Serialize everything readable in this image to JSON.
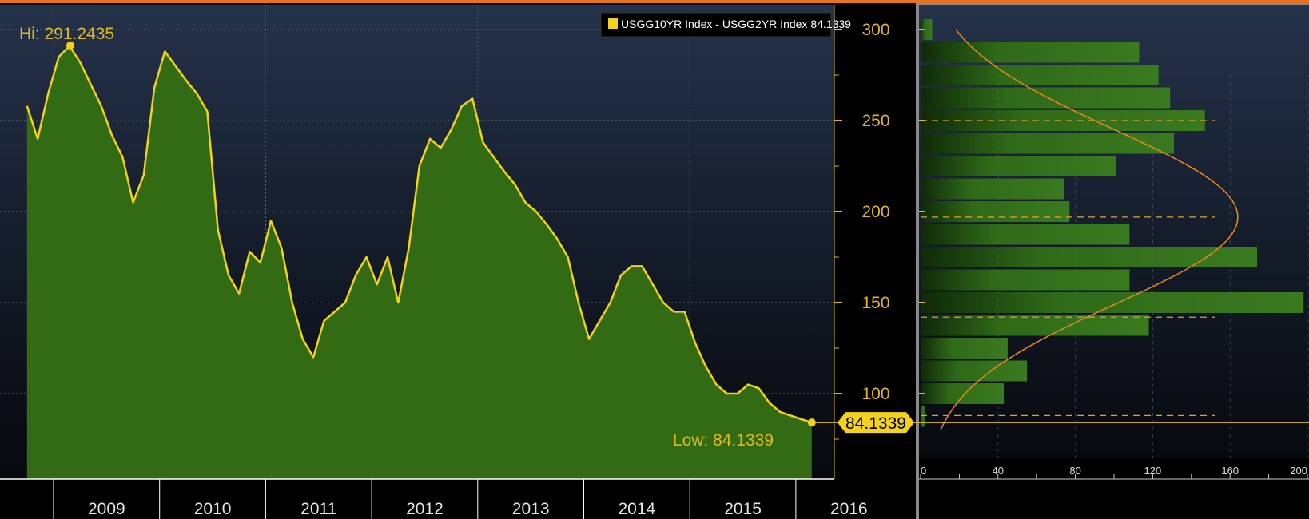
{
  "chart_data": [
    {
      "type": "area",
      "series_label": "USGG10YR Index - USGG2YR Index 84.1339",
      "last_value_label": "84.1339",
      "hi_label": "Hi: 291.2435",
      "low_label": "Low: 84.1339",
      "hi": 291.2435,
      "low": 84.1339,
      "last": 84.1339,
      "ylim": [
        60,
        310
      ],
      "yticks": [
        100,
        150,
        200,
        250,
        300
      ],
      "ytick_labels": [
        "100",
        "150",
        "200",
        "250",
        "300"
      ],
      "year_labels": [
        "2009",
        "2010",
        "2011",
        "2012",
        "2013",
        "2014",
        "2015",
        "2016"
      ],
      "grid": true,
      "legend": "top-right",
      "colors": {
        "line": "#f2d21a",
        "fill": "#336b14",
        "accent": "#e0b822",
        "bg_top": "#24324a",
        "bg_bottom": "#06080d"
      },
      "x": [
        2009.0,
        2009.1,
        2009.2,
        2009.3,
        2009.4,
        2009.5,
        2009.6,
        2009.7,
        2009.8,
        2009.9,
        2010.0,
        2010.1,
        2010.2,
        2010.3,
        2010.4,
        2010.5,
        2010.6,
        2010.7,
        2010.8,
        2010.9,
        2011.0,
        2011.1,
        2011.2,
        2011.3,
        2011.4,
        2011.5,
        2011.6,
        2011.7,
        2011.8,
        2011.9,
        2012.0,
        2012.1,
        2012.2,
        2012.3,
        2012.4,
        2012.5,
        2012.6,
        2012.7,
        2012.8,
        2012.9,
        2013.0,
        2013.1,
        2013.2,
        2013.3,
        2013.4,
        2013.5,
        2013.6,
        2013.7,
        2013.8,
        2013.9,
        2014.0,
        2014.1,
        2014.2,
        2014.3,
        2014.4,
        2014.5,
        2014.6,
        2014.7,
        2014.8,
        2014.9,
        2015.0,
        2015.1,
        2015.2,
        2015.3,
        2015.4,
        2015.5,
        2015.6,
        2015.7,
        2015.8,
        2015.9,
        2016.0,
        2016.1,
        2016.2,
        2016.3,
        2016.4
      ],
      "values": [
        258,
        240,
        265,
        285,
        291,
        282,
        270,
        258,
        242,
        230,
        205,
        220,
        268,
        288,
        280,
        272,
        265,
        255,
        190,
        165,
        155,
        178,
        172,
        195,
        180,
        150,
        130,
        120,
        140,
        145,
        150,
        165,
        175,
        160,
        175,
        150,
        180,
        225,
        240,
        235,
        245,
        258,
        262,
        238,
        230,
        222,
        215,
        205,
        200,
        193,
        185,
        175,
        150,
        130,
        140,
        150,
        165,
        170,
        170,
        160,
        150,
        145,
        145,
        128,
        115,
        105,
        100,
        100,
        105,
        103,
        95,
        90,
        88,
        86,
        84.1339
      ]
    },
    {
      "type": "bar",
      "orientation": "horizontal",
      "xticks": [
        0,
        40,
        80,
        120,
        160,
        200
      ],
      "xtick_labels": [
        "0",
        "40",
        "80",
        "120",
        "160",
        "200"
      ],
      "xlim": [
        0,
        200
      ],
      "bin_centers": [
        87.5,
        100,
        112.5,
        125,
        137.5,
        150,
        162.5,
        175,
        187.5,
        200,
        212.5,
        225,
        237.5,
        250,
        262.5,
        275,
        287.5,
        300
      ],
      "values": [
        2,
        43,
        55,
        45,
        118,
        198,
        108,
        174,
        108,
        77,
        74,
        101,
        131,
        147,
        129,
        123,
        113,
        6
      ],
      "curve": "normal-fit",
      "curve_peak_value": 162,
      "curve_mean": 197,
      "dashed_levels": [
        88,
        142,
        197,
        250
      ],
      "colors": {
        "bar": "#2f6a18",
        "curve": "#e88a1a",
        "dashed": "#e0a030"
      }
    }
  ]
}
